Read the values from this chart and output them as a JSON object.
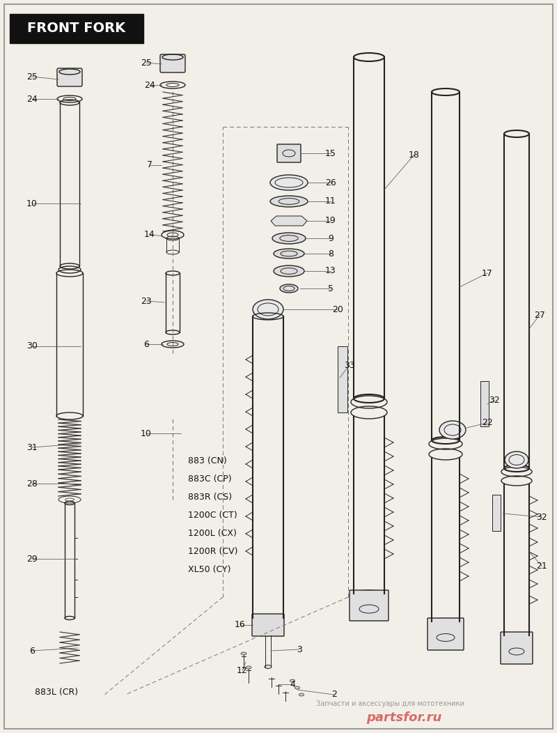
{
  "title": "FRONT FORK",
  "background_color": "#f2efe8",
  "border_color": "#888888",
  "text_color": "#111111",
  "title_bg": "#111111",
  "title_text_color": "#ffffff",
  "model_codes": [
    "883 (CN)",
    "883C (CP)",
    "883R (CS)",
    "1200C (CT)",
    "1200L (CX)",
    "1200R (CV)",
    "XL50 (CY)"
  ],
  "model_note": "883L (CR)",
  "watermark_text": "partsfor.ru",
  "watermark_sub": "Запчасти и аксессуары для мототехники"
}
